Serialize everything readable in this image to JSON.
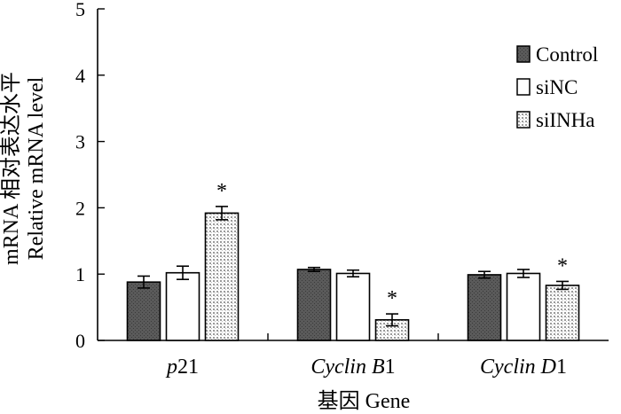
{
  "chart_data": {
    "type": "bar",
    "categories": [
      "p21",
      "Cyclin B1",
      "Cyclin D1"
    ],
    "category_parts": [
      [
        {
          "text": "p",
          "italic": true
        },
        {
          "text": "21",
          "italic": false
        }
      ],
      [
        {
          "text": "Cyclin ",
          "italic": true
        },
        {
          "text": "B",
          "italic": true
        },
        {
          "text": "1",
          "italic": false
        }
      ],
      [
        {
          "text": "Cyclin ",
          "italic": true
        },
        {
          "text": "D",
          "italic": true
        },
        {
          "text": "1",
          "italic": false
        }
      ]
    ],
    "series": [
      {
        "name": "Control",
        "values": [
          0.88,
          1.07,
          0.99
        ],
        "errors": [
          0.09,
          0.03,
          0.05
        ],
        "fill": "#5a5a5a",
        "pattern": "solid-dark"
      },
      {
        "name": "siNC",
        "values": [
          1.02,
          1.01,
          1.01
        ],
        "errors": [
          0.1,
          0.05,
          0.06
        ],
        "fill": "#ffffff",
        "pattern": "none"
      },
      {
        "name": "siINHa",
        "values": [
          1.92,
          0.31,
          0.83
        ],
        "errors": [
          0.1,
          0.09,
          0.06
        ],
        "fill": "#d8d8d8",
        "pattern": "dotted"
      }
    ],
    "significance": [
      {
        "category": 0,
        "series": 2,
        "label": "*"
      },
      {
        "category": 1,
        "series": 2,
        "label": "*"
      },
      {
        "category": 2,
        "series": 2,
        "label": "*"
      }
    ],
    "ylim": [
      0,
      5
    ],
    "yticks": [
      0,
      1,
      2,
      3,
      4,
      5
    ],
    "ylabel_line1": "mRNA 相对表达水平",
    "ylabel_line2": "Relative mRNA level",
    "xlabel": "基因 Gene",
    "legend_position": "top-right",
    "grid": false
  }
}
